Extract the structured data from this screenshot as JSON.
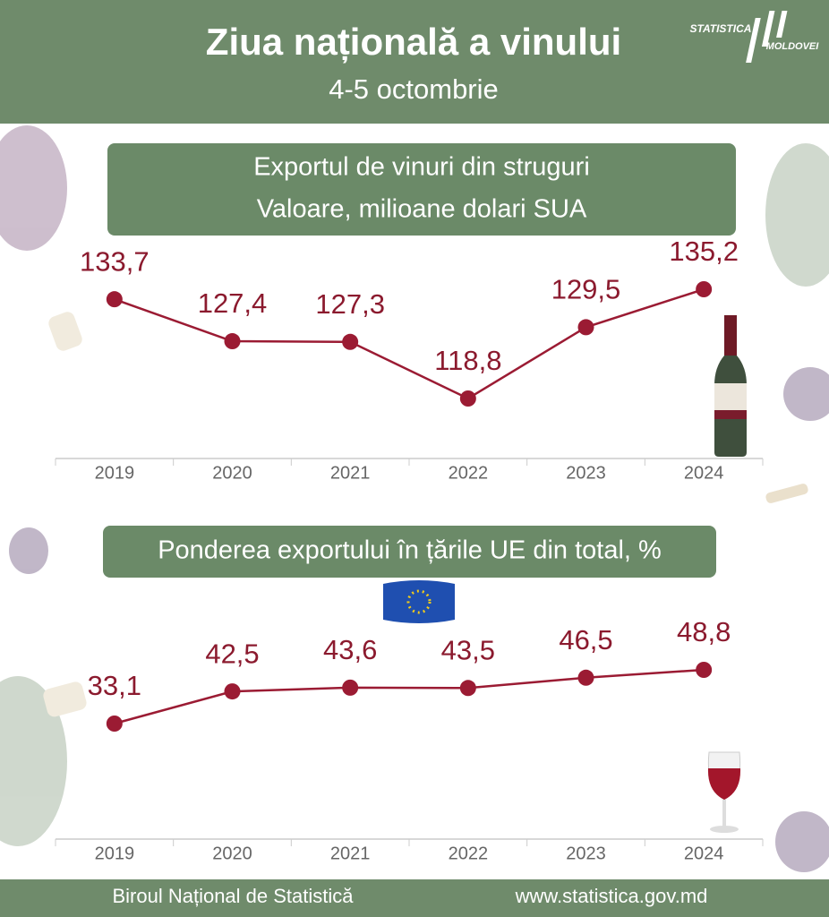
{
  "header": {
    "title": "Ziua națională a vinului",
    "subtitle": "4-5 octombrie",
    "logo": [
      "STATISTICA",
      "MOLDOVEI"
    ]
  },
  "chart_data": [
    {
      "type": "line",
      "title": [
        "Exportul de vinuri din struguri",
        "Valoare, milioane dolari SUA"
      ],
      "categories": [
        "2019",
        "2020",
        "2021",
        "2022",
        "2023",
        "2024"
      ],
      "values": [
        133.7,
        127.4,
        127.3,
        118.8,
        129.5,
        135.2
      ],
      "value_labels": [
        "133,7",
        "127,4",
        "127,3",
        "118,8",
        "129,5",
        "135,2"
      ],
      "color": "#9b1b33"
    },
    {
      "type": "line",
      "title": [
        "Ponderea exportului în țările UE din total, %"
      ],
      "categories": [
        "2019",
        "2020",
        "2021",
        "2022",
        "2023",
        "2024"
      ],
      "values": [
        33.1,
        42.5,
        43.6,
        43.5,
        46.5,
        48.8
      ],
      "value_labels": [
        "33,1",
        "42,5",
        "43,6",
        "43,5",
        "46,5",
        "48,8"
      ],
      "color": "#9b1b33"
    }
  ],
  "footer": {
    "left": "Biroul Național de Statistică",
    "right": "www.statistica.gov.md"
  }
}
